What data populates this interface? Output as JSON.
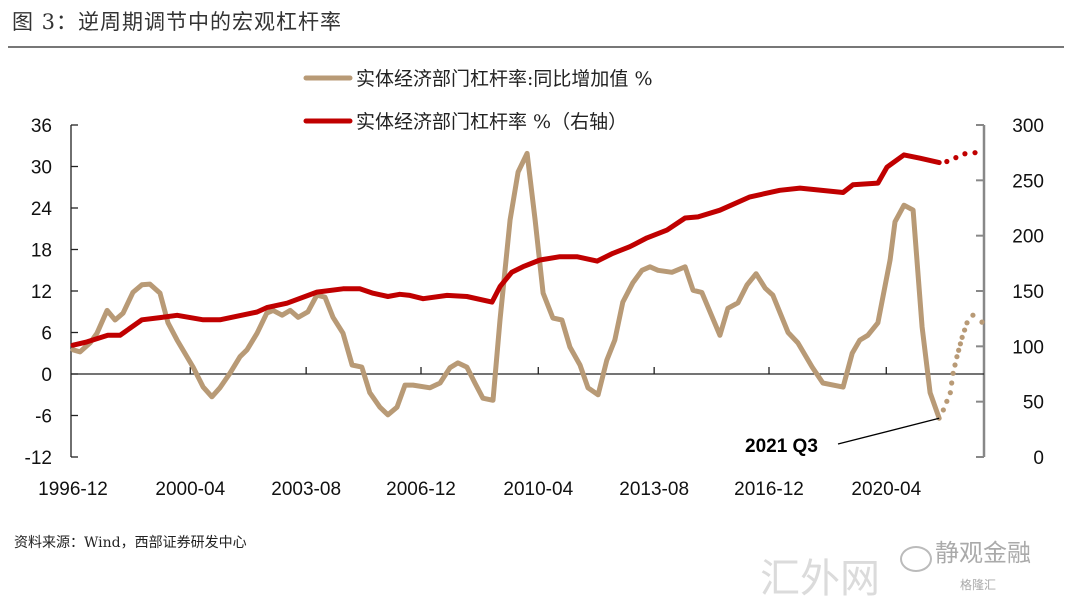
{
  "title": "图 3：逆周期调节中的宏观杠杆率",
  "source": "资料来源：Wind，西部证券研发中心",
  "watermark": {
    "primary": "静观金融",
    "secondary": "汇外网",
    "tertiary": "格隆汇"
  },
  "colors": {
    "tan": "#b89a76",
    "red": "#c00000",
    "axis": "#222222",
    "right_axis": "#888888"
  },
  "chart_data": {
    "type": "line",
    "title": "逆周期调节中的宏观杠杆率",
    "x_tick_labels": [
      "1996-12",
      "2000-04",
      "2003-08",
      "2006-12",
      "2010-04",
      "2013-08",
      "2016-12",
      "2020-04"
    ],
    "x_tick_values": [
      1996.92,
      2000.29,
      2003.62,
      2006.92,
      2010.29,
      2013.62,
      2016.92,
      2020.29
    ],
    "xlim": [
      1996.92,
      2023.1
    ],
    "y_left": {
      "ylim": [
        -12,
        36
      ],
      "ticks": [
        -12,
        -6,
        0,
        6,
        12,
        18,
        24,
        30,
        36
      ]
    },
    "y_right": {
      "ylim": [
        0,
        300
      ],
      "ticks": [
        0,
        50,
        100,
        150,
        200,
        250,
        300
      ]
    },
    "legend": [
      "实体经济部门杠杆率:同比增加值 %",
      "实体经济部门杠杆率 %（右轴）"
    ],
    "legend_position": "top-center",
    "annotation": {
      "text": "2021 Q3",
      "x": 2021.81,
      "y": -6.4
    },
    "series": [
      {
        "name": "实体经济部门杠杆率:同比增加值 %",
        "axis": "left",
        "color": "#b89a76",
        "points": [
          [
            1996.92,
            3.5
          ],
          [
            1997.12,
            3.2
          ],
          [
            1997.41,
            4.5
          ],
          [
            1997.61,
            5.9
          ],
          [
            1997.9,
            9.2
          ],
          [
            1998.13,
            7.8
          ],
          [
            1998.36,
            8.8
          ],
          [
            1998.64,
            11.8
          ],
          [
            1998.9,
            12.9
          ],
          [
            1999.13,
            13
          ],
          [
            1999.42,
            11.7
          ],
          [
            1999.65,
            7.4
          ],
          [
            1999.91,
            4.9
          ],
          [
            2000.37,
            1
          ],
          [
            2000.66,
            -1.9
          ],
          [
            2000.91,
            -3.3
          ],
          [
            2001.14,
            -2
          ],
          [
            2001.43,
            0.1
          ],
          [
            2001.72,
            2.5
          ],
          [
            2001.92,
            3.5
          ],
          [
            2002.21,
            5.9
          ],
          [
            2002.49,
            8.8
          ],
          [
            2002.67,
            9.2
          ],
          [
            2002.93,
            8.5
          ],
          [
            2003.16,
            9.2
          ],
          [
            2003.39,
            8.2
          ],
          [
            2003.67,
            9
          ],
          [
            2003.93,
            11.4
          ],
          [
            2004.16,
            11.1
          ],
          [
            2004.39,
            8.2
          ],
          [
            2004.68,
            5.9
          ],
          [
            2004.94,
            1.3
          ],
          [
            2005.22,
            1
          ],
          [
            2005.45,
            -2.7
          ],
          [
            2005.74,
            -4.8
          ],
          [
            2005.97,
            -5.9
          ],
          [
            2006.23,
            -4.8
          ],
          [
            2006.46,
            -1.6
          ],
          [
            2006.69,
            -1.6
          ],
          [
            2007.18,
            -2
          ],
          [
            2007.47,
            -1.3
          ],
          [
            2007.75,
            0.9
          ],
          [
            2007.98,
            1.6
          ],
          [
            2008.24,
            1
          ],
          [
            2008.47,
            -1.3
          ],
          [
            2008.7,
            -3.5
          ],
          [
            2008.99,
            -3.8
          ],
          [
            2009.19,
            7.8
          ],
          [
            2009.48,
            22.3
          ],
          [
            2009.71,
            29.2
          ],
          [
            2009.97,
            31.9
          ],
          [
            2010.2,
            22.3
          ],
          [
            2010.43,
            11.7
          ],
          [
            2010.71,
            8.1
          ],
          [
            2010.97,
            7.8
          ],
          [
            2011.2,
            3.9
          ],
          [
            2011.49,
            1.3
          ],
          [
            2011.72,
            -2
          ],
          [
            2012.01,
            -3
          ],
          [
            2012.26,
            2
          ],
          [
            2012.49,
            4.9
          ],
          [
            2012.72,
            10.4
          ],
          [
            2013.01,
            13.2
          ],
          [
            2013.27,
            15
          ],
          [
            2013.5,
            15.5
          ],
          [
            2013.73,
            15
          ],
          [
            2014.13,
            14.7
          ],
          [
            2014.51,
            15.5
          ],
          [
            2014.74,
            12.1
          ],
          [
            2014.99,
            11.8
          ],
          [
            2015.51,
            5.6
          ],
          [
            2015.74,
            9.5
          ],
          [
            2016.03,
            10.3
          ],
          [
            2016.29,
            12.9
          ],
          [
            2016.55,
            14.5
          ],
          [
            2016.81,
            12.4
          ],
          [
            2017.03,
            11.4
          ],
          [
            2017.47,
            6
          ],
          [
            2017.75,
            4.5
          ],
          [
            2018.16,
            1
          ],
          [
            2018.47,
            -1.3
          ],
          [
            2019.05,
            -1.9
          ],
          [
            2019.31,
            3
          ],
          [
            2019.53,
            4.9
          ],
          [
            2019.76,
            5.6
          ],
          [
            2020.05,
            7.4
          ],
          [
            2020.4,
            16.5
          ],
          [
            2020.54,
            22
          ],
          [
            2020.8,
            24.4
          ],
          [
            2021.06,
            23.7
          ],
          [
            2021.32,
            6.8
          ],
          [
            2021.55,
            -2.7
          ],
          [
            2021.81,
            -6.4
          ]
        ],
        "forecast_points": [
          [
            2021.81,
            -6.4
          ],
          [
            2021.93,
            -5.2
          ],
          [
            2022.13,
            -2.7
          ],
          [
            2022.21,
            0.1
          ],
          [
            2022.32,
            2.5
          ],
          [
            2022.47,
            5.3
          ],
          [
            2022.61,
            7.4
          ],
          [
            2022.78,
            8.5
          ],
          [
            2023.04,
            7.5
          ]
        ]
      },
      {
        "name": "实体经济部门杠杆率 %（右轴）",
        "axis": "right",
        "color": "#c00000",
        "points": [
          [
            1996.92,
            101
          ],
          [
            1997.32,
            104
          ],
          [
            1997.92,
            110
          ],
          [
            1998.27,
            110
          ],
          [
            1998.9,
            124
          ],
          [
            1999.42,
            126
          ],
          [
            1999.91,
            128
          ],
          [
            2000.66,
            124
          ],
          [
            2001.14,
            124
          ],
          [
            2002.21,
            131
          ],
          [
            2002.49,
            135
          ],
          [
            2003.07,
            139
          ],
          [
            2003.93,
            149
          ],
          [
            2004.68,
            152
          ],
          [
            2005.16,
            152
          ],
          [
            2005.54,
            148
          ],
          [
            2005.97,
            145
          ],
          [
            2006.31,
            147
          ],
          [
            2006.6,
            146
          ],
          [
            2006.98,
            143
          ],
          [
            2007.67,
            146
          ],
          [
            2008.24,
            145
          ],
          [
            2008.96,
            140
          ],
          [
            2009.19,
            154
          ],
          [
            2009.53,
            167
          ],
          [
            2009.85,
            172
          ],
          [
            2010.34,
            178
          ],
          [
            2010.91,
            181
          ],
          [
            2011.4,
            181
          ],
          [
            2011.98,
            177
          ],
          [
            2012.43,
            184
          ],
          [
            2012.92,
            190
          ],
          [
            2013.41,
            198
          ],
          [
            2013.99,
            205
          ],
          [
            2014.51,
            216
          ],
          [
            2014.88,
            217
          ],
          [
            2015.51,
            223
          ],
          [
            2016.37,
            235
          ],
          [
            2017.23,
            241
          ],
          [
            2017.81,
            243
          ],
          [
            2019.05,
            239
          ],
          [
            2019.33,
            246
          ],
          [
            2020.05,
            247.5
          ],
          [
            2020.31,
            262
          ],
          [
            2020.8,
            273
          ],
          [
            2021.26,
            270
          ],
          [
            2021.81,
            266
          ]
        ],
        "forecast_points": [
          [
            2021.81,
            266
          ],
          [
            2022.03,
            267
          ],
          [
            2022.55,
            274
          ],
          [
            2022.84,
            275
          ]
        ]
      }
    ]
  }
}
